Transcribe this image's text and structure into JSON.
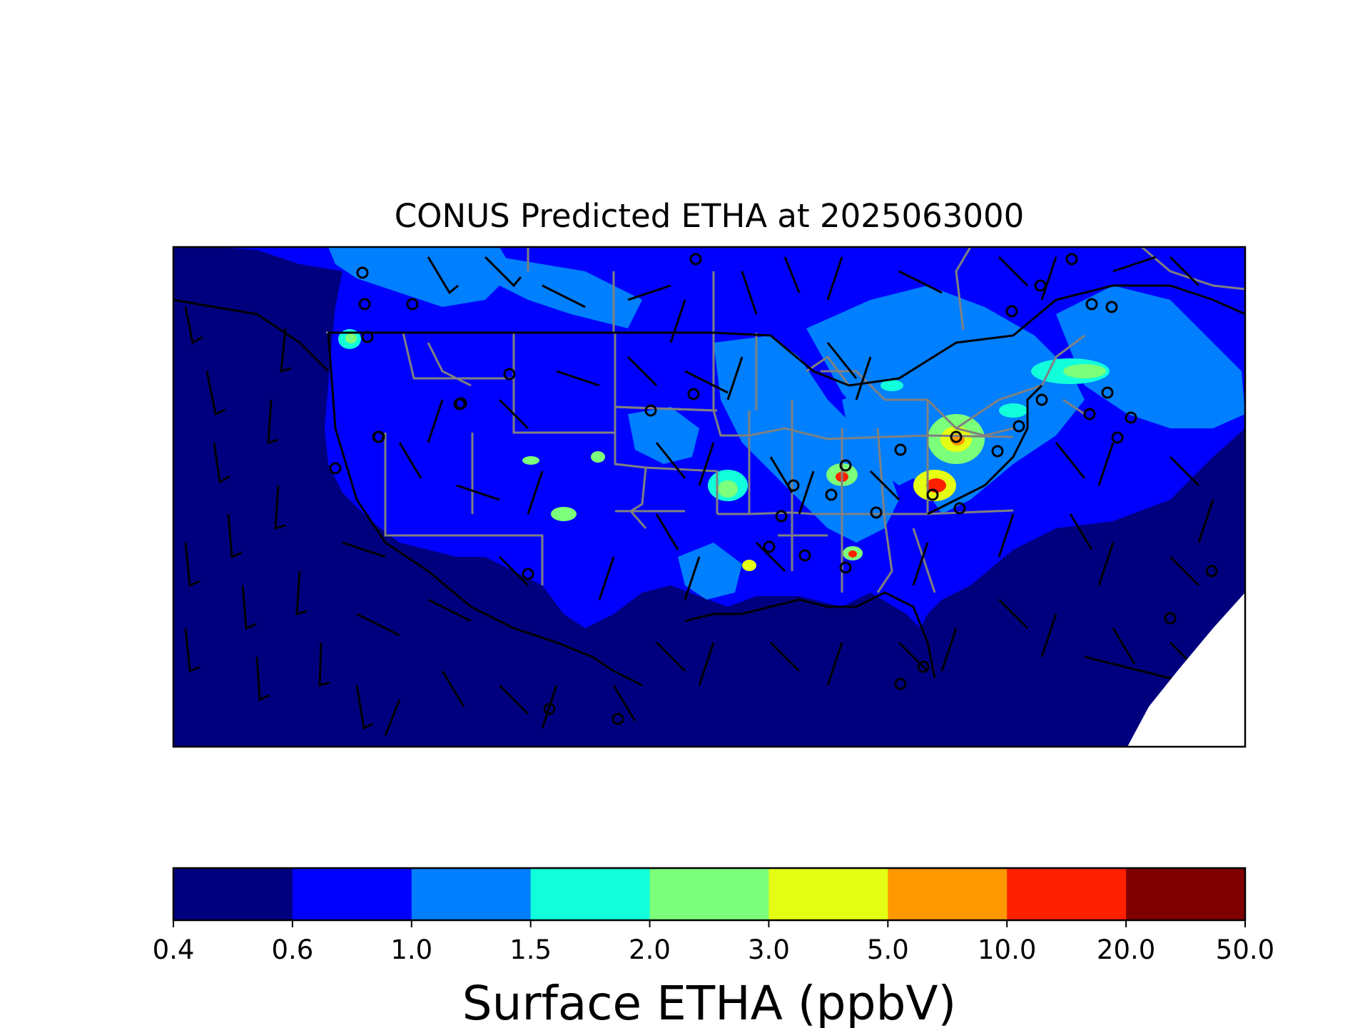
{
  "title": "CONUS Predicted ETHA at 2025063000",
  "colorbar": {
    "label": "Surface ETHA (ppbV)",
    "ticks": [
      "0.4",
      "0.6",
      "1.0",
      "1.5",
      "2.0",
      "3.0",
      "5.0",
      "10.0",
      "20.0",
      "50.0"
    ],
    "colors": [
      "#00007f",
      "#0000ff",
      "#007fff",
      "#12ffdc",
      "#7cff7a",
      "#e4ff13",
      "#ff9700",
      "#ff2000",
      "#7f0000"
    ]
  },
  "map": {
    "region": "CONUS",
    "variable": "ETHA",
    "units": "ppbV",
    "overlays": [
      "state-boundaries",
      "country-boundaries",
      "coastlines",
      "wind-barbs",
      "calm-wind-circles"
    ]
  }
}
